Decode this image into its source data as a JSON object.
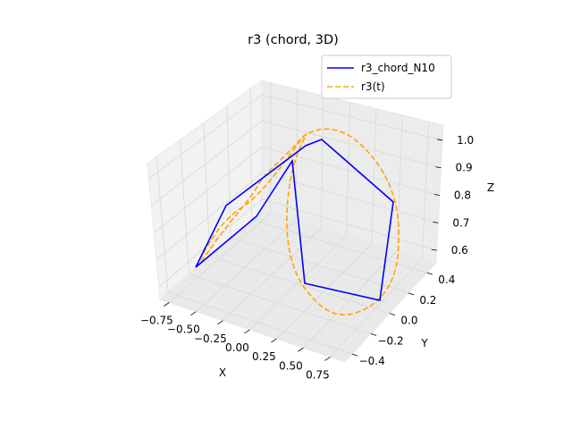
{
  "chart_data": {
    "type": "line3d",
    "title": "r3 (chord, 3D)",
    "xlabel": "X",
    "ylabel": "Y",
    "zlabel": "Z",
    "xticks": [
      "−0.75",
      "−0.50",
      "−0.25",
      "0.00",
      "0.25",
      "0.50",
      "0.75"
    ],
    "yticks": [
      "−0.4",
      "−0.2",
      "0.0",
      "0.2",
      "0.4"
    ],
    "zticks": [
      "0.6",
      "0.7",
      "0.8",
      "0.9",
      "1.0"
    ],
    "xlim": [
      -0.88,
      0.88
    ],
    "ylim": [
      -0.44,
      0.47
    ],
    "zlim": [
      0.54,
      1.0
    ],
    "legend": {
      "location": "upper right"
    },
    "series": [
      {
        "name": "r3_chord_N10",
        "color": "#0000ff",
        "style": "solid",
        "points": [
          {
            "x": -0.81,
            "y": -0.1,
            "z": 0.7
          },
          {
            "x": -0.55,
            "y": 0.15,
            "z": 0.85
          },
          {
            "x": 0.0,
            "y": 0.38,
            "z": 0.985
          },
          {
            "x": 0.55,
            "y": 0.15,
            "z": 0.85
          },
          {
            "x": 0.81,
            "y": -0.1,
            "z": 0.7
          },
          {
            "x": 0.65,
            "y": -0.35,
            "z": 0.565
          },
          {
            "x": 0.1,
            "y": -0.4,
            "z": 0.555
          },
          {
            "x": -0.3,
            "y": -0.35,
            "z": 0.565
          },
          {
            "x": -0.81,
            "y": -0.1,
            "z": 0.7
          }
        ]
      },
      {
        "name": "r3(t)",
        "color": "#ffa500",
        "style": "dashed",
        "parametric": "x=0.81·cos(2πt)·(loop), y≈0.4·sin, z∈[0.55,1.0]",
        "points": []
      }
    ]
  }
}
